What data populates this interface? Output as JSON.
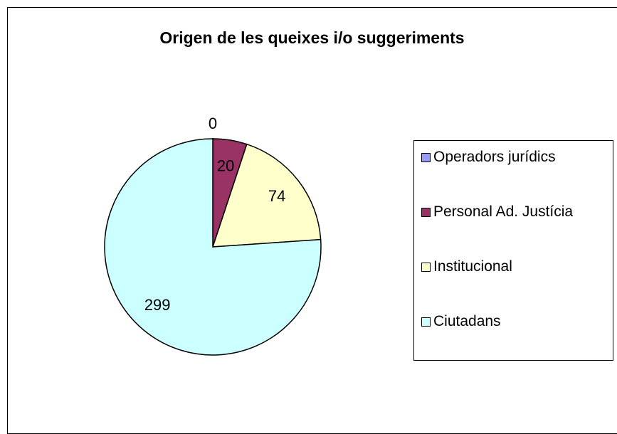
{
  "chart_data": {
    "type": "pie",
    "title": "Origen de les queixes i/o suggeriments",
    "categories": [
      "Operadors jurídics",
      "Personal Ad. Justícia",
      "Institucional",
      "Ciutadans"
    ],
    "values": [
      0,
      20,
      74,
      299
    ],
    "colors": [
      "#9999ff",
      "#993366",
      "#ffffcc",
      "#ccffff"
    ],
    "legend": "right"
  }
}
